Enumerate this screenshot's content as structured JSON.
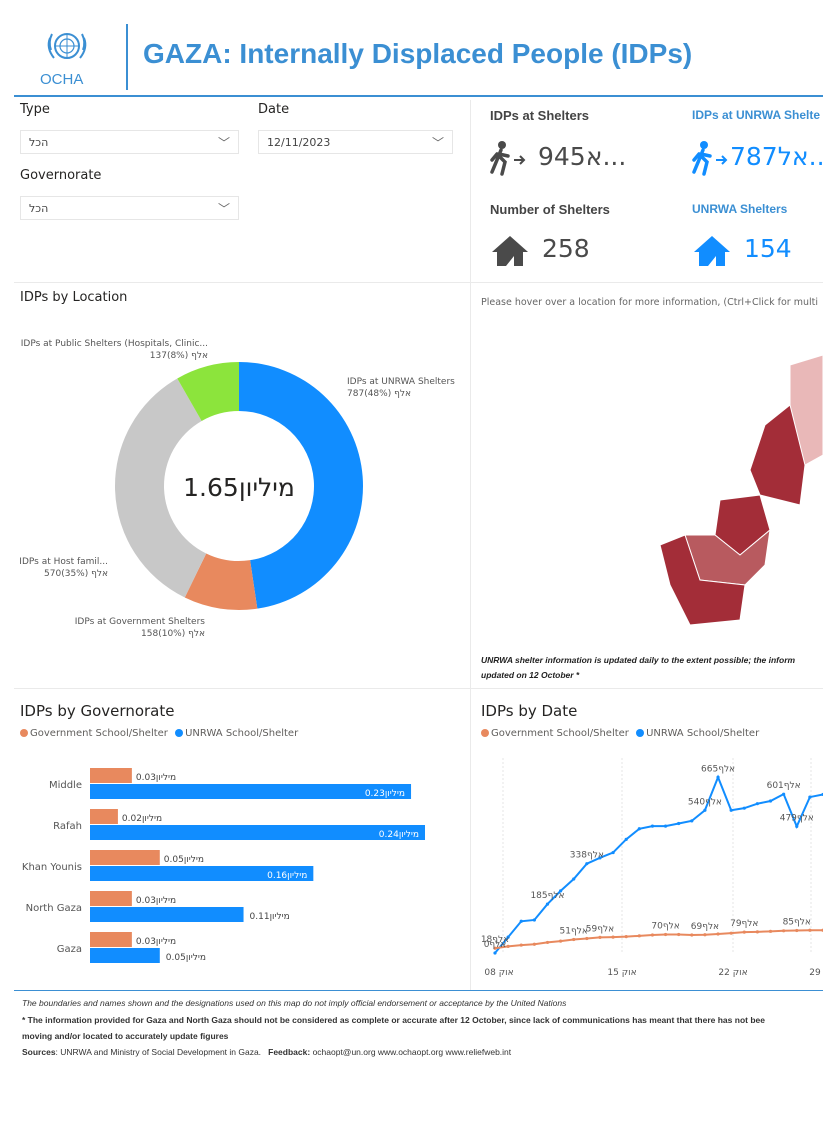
{
  "header": {
    "title": "GAZA: Internally Displaced People (IDPs)",
    "logo_text": "OCHA"
  },
  "filters": {
    "type_label": "Type",
    "type_value": "הכל",
    "date_label": "Date",
    "date_value": "12/11/2023",
    "governorate_label": "Governorate",
    "governorate_value": "הכל"
  },
  "cards": {
    "idps_shelters_title": "IDPs at Shelters",
    "idps_shelters_value": "945א...",
    "idps_unrwa_title": "IDPs at UNRWA Shelte",
    "idps_unrwa_value": "787אל...",
    "num_shelters_title": "Number of Shelters",
    "num_shelters_value": "258",
    "unrwa_shelters_title": "UNRWA Shelters",
    "unrwa_shelters_value": "154"
  },
  "colors": {
    "accent": "#3b8fd3",
    "unrwa_blue": "#118dff",
    "gov_orange": "#e8895e",
    "gray": "#c8c8c8",
    "green": "#8ce43c",
    "dark_gray": "#4a4a4a"
  },
  "map": {
    "hint": "Please hover over a location for more information, (Ctrl+Click for multi",
    "note_line1": "UNRWA shelter information is updated daily to the extent possible; the inform",
    "note_line2": "updated on 12 October *"
  },
  "footer": {
    "line1": "The boundaries and names shown and the designations used on this map do not imply official endorsement or acceptance by the United Nations",
    "line2": "* The information provided for Gaza and North Gaza should not be considered as complete or accurate after 12 October, since lack of communications has meant that there has not bee",
    "line3": "moving and/or located to accurately update figures",
    "sources_label": "Sources",
    "sources_text": ": UNRWA and Ministry of Social Development in Gaza.",
    "feedback_label": "Feedback:",
    "feedback_text": "ochaopt@un.org     www.ochaopt.org     www.reliefweb.int"
  },
  "chart_data": [
    {
      "type": "pie",
      "title": "IDPs by Location",
      "center_label": "1.65מיליון",
      "slices": [
        {
          "name": "IDPs at UNRWA Shelters",
          "value": 787,
          "pct": 48,
          "label": "787אלף (48%)"
        },
        {
          "name": "IDPs at Government Shelters",
          "value": 158,
          "pct": 10,
          "label": "158אלף (10%)"
        },
        {
          "name": "IDPs at Host famil...",
          "value": 570,
          "pct": 35,
          "label": "570אלף (35%)"
        },
        {
          "name": "IDPs at Public Shelters (Hospitals, Clinic...",
          "value": 137,
          "pct": 8,
          "label": "137אלף (8%)"
        }
      ]
    },
    {
      "type": "bar",
      "title": "IDPs by Governorate",
      "legend": [
        "Government School/Shelter",
        "UNRWA School/Shelter"
      ],
      "categories": [
        "Middle",
        "Rafah",
        "Khan Younis",
        "North Gaza",
        "Gaza"
      ],
      "series": [
        {
          "name": "Government School/Shelter",
          "values": [
            0.03,
            0.02,
            0.05,
            0.03,
            0.03
          ],
          "labels": [
            "0.03מיליון",
            "0.02מיליון",
            "0.05מיליון",
            "0.03מיליון",
            "0.03מיליון"
          ]
        },
        {
          "name": "UNRWA School/Shelter",
          "values": [
            0.23,
            0.24,
            0.16,
            0.11,
            0.05
          ],
          "labels": [
            "0.23מיליון",
            "0.24מיליון",
            "0.16מיליון",
            "0.11מיליון",
            "0.05מיליון"
          ]
        }
      ],
      "xlim": [
        0,
        0.24
      ]
    },
    {
      "type": "line",
      "title": "IDPs by Date",
      "legend": [
        "Government School/Shelter",
        "UNRWA School/Shelter"
      ],
      "x_ticks": [
        "08 אוק",
        "15 אוק",
        "22 אוק",
        "29"
      ],
      "series": [
        {
          "name": "UNRWA School/Shelter",
          "values": [
            0,
            60,
            120,
            125,
            185,
            235,
            280,
            338,
            360,
            380,
            430,
            470,
            480,
            480,
            490,
            500,
            540,
            665,
            540,
            548,
            565,
            575,
            601,
            479,
            590,
            600
          ]
        },
        {
          "name": "Government School/Shelter",
          "values": [
            18,
            25,
            30,
            33,
            40,
            45,
            51,
            55,
            59,
            60,
            62,
            65,
            68,
            70,
            70,
            68,
            69,
            72,
            75,
            79,
            80,
            82,
            84,
            85,
            86,
            86
          ]
        }
      ],
      "data_labels": [
        {
          "series": 0,
          "index": 0,
          "text": "0אלף"
        },
        {
          "series": 0,
          "index": 4,
          "text": "185אלף"
        },
        {
          "series": 0,
          "index": 7,
          "text": "338אלף"
        },
        {
          "series": 0,
          "index": 17,
          "text": "665אלף"
        },
        {
          "series": 0,
          "index": 16,
          "text": "540אלף"
        },
        {
          "series": 0,
          "index": 22,
          "text": "601אלף"
        },
        {
          "series": 0,
          "index": 23,
          "text": "479אלף"
        },
        {
          "series": 1,
          "index": 0,
          "text": "18אלף"
        },
        {
          "series": 1,
          "index": 6,
          "text": "51אלף"
        },
        {
          "series": 1,
          "index": 8,
          "text": "59אלף"
        },
        {
          "series": 1,
          "index": 13,
          "text": "70אלף"
        },
        {
          "series": 1,
          "index": 16,
          "text": "69אלף"
        },
        {
          "series": 1,
          "index": 19,
          "text": "79אלף"
        },
        {
          "series": 1,
          "index": 23,
          "text": "85אלף"
        }
      ],
      "ylim": [
        0,
        700
      ]
    }
  ]
}
